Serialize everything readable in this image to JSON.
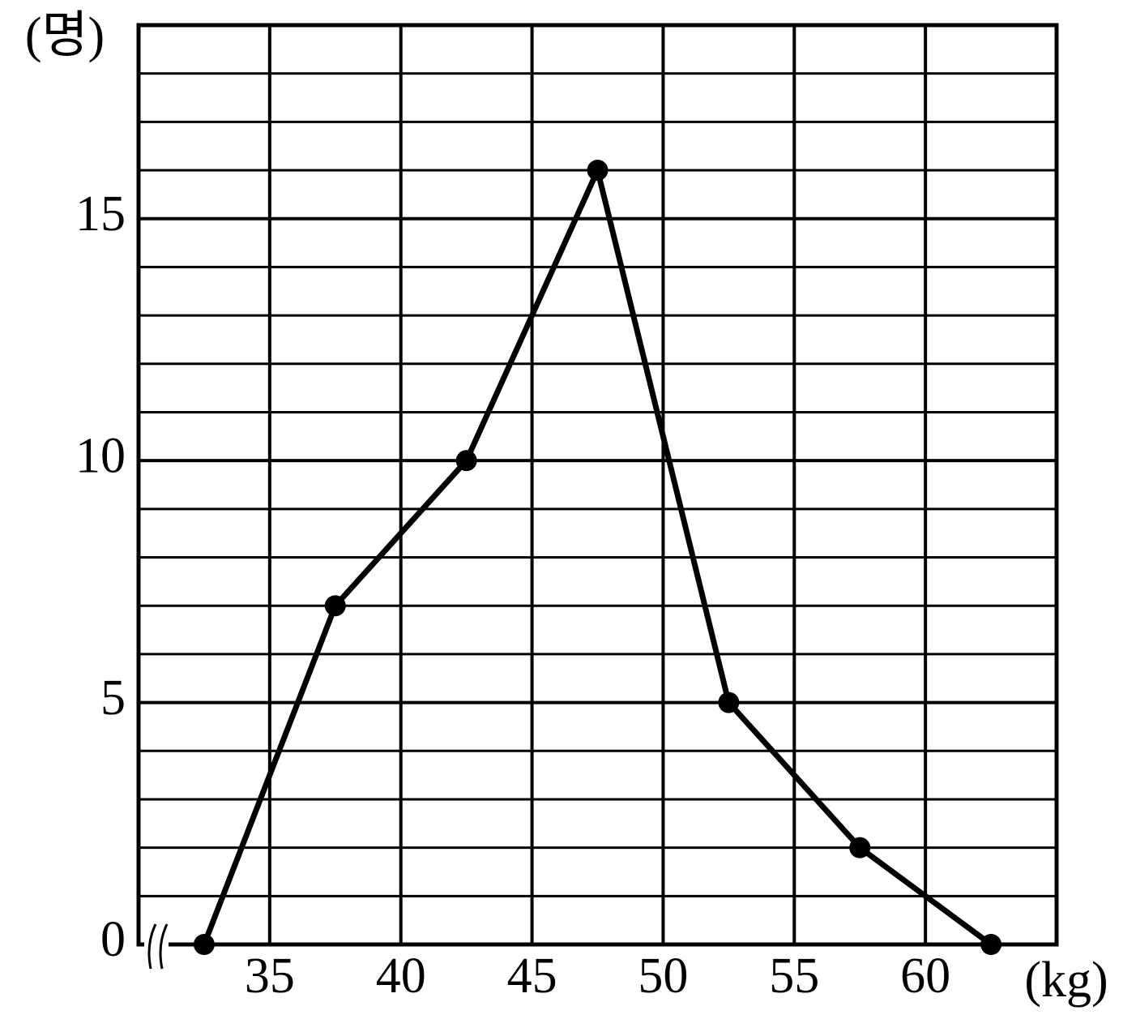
{
  "chart_data": {
    "type": "line",
    "y_label": "(명)",
    "x_label": "(kg)",
    "x": [
      32.5,
      37.5,
      42.5,
      47.5,
      52.5,
      57.5,
      62.5
    ],
    "values": [
      0,
      7,
      10,
      16,
      5,
      2,
      0
    ],
    "color": "#000000",
    "xlim": [
      30,
      65
    ],
    "xticks": [
      35,
      40,
      45,
      50,
      55,
      60
    ],
    "ylim": [
      0,
      19
    ],
    "yticks": [
      0,
      5,
      10,
      15
    ],
    "minor_yticks": [
      1,
      2,
      3,
      4,
      6,
      7,
      8,
      9,
      11,
      12,
      13,
      14,
      16,
      17,
      18
    ],
    "grid": true,
    "axis_break": true
  }
}
